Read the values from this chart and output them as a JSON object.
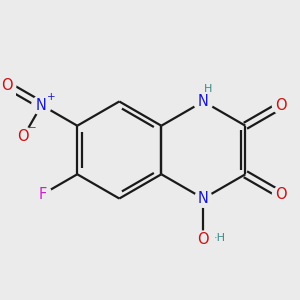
{
  "bg_color": "#ebebeb",
  "bond_color": "#1a1a1a",
  "bond_width": 1.6,
  "atom_colors": {
    "C": "#1a1a1a",
    "N": "#1919cc",
    "O": "#cc1111",
    "F": "#cc22cc",
    "H": "#3a8a8a",
    "Nplus": "#1919cc",
    "Ominus": "#cc1111"
  },
  "font_size": 10.5,
  "small_font_size": 8.0,
  "sup_font_size": 7.5
}
